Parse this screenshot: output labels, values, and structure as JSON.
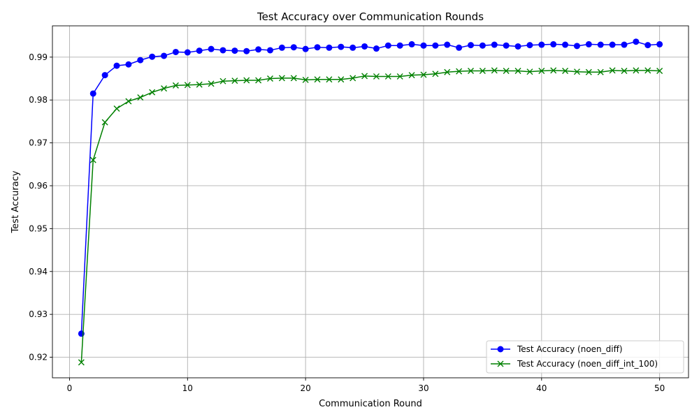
{
  "chart_data": {
    "type": "line",
    "title": "Test Accuracy over Communication Rounds",
    "xlabel": "Communication Round",
    "ylabel": "Test Accuracy",
    "xlim": [
      -1.45,
      52.45
    ],
    "ylim": [
      0.9152,
      0.9973
    ],
    "xticks": [
      0,
      10,
      20,
      30,
      40,
      50
    ],
    "yticks": [
      0.92,
      0.93,
      0.94,
      0.95,
      0.96,
      0.97,
      0.98,
      0.99
    ],
    "grid": true,
    "legend_position": "lower-right",
    "x": [
      1,
      2,
      3,
      4,
      5,
      6,
      7,
      8,
      9,
      10,
      11,
      12,
      13,
      14,
      15,
      16,
      17,
      18,
      19,
      20,
      21,
      22,
      23,
      24,
      25,
      26,
      27,
      28,
      29,
      30,
      31,
      32,
      33,
      34,
      35,
      36,
      37,
      38,
      39,
      40,
      41,
      42,
      43,
      44,
      45,
      46,
      47,
      48,
      49,
      50
    ],
    "series": [
      {
        "name": "Test Accuracy (noen_diff)",
        "color": "#0000ff",
        "marker": "circle",
        "values": [
          0.9255,
          0.9815,
          0.9858,
          0.988,
          0.9883,
          0.9893,
          0.9901,
          0.9903,
          0.9912,
          0.9911,
          0.9915,
          0.9919,
          0.9916,
          0.9915,
          0.9914,
          0.9918,
          0.9916,
          0.9922,
          0.9923,
          0.9919,
          0.9923,
          0.9922,
          0.9924,
          0.9922,
          0.9925,
          0.992,
          0.9927,
          0.9927,
          0.993,
          0.9927,
          0.9927,
          0.9929,
          0.9922,
          0.9928,
          0.9927,
          0.9929,
          0.9927,
          0.9925,
          0.9928,
          0.9929,
          0.993,
          0.9929,
          0.9926,
          0.993,
          0.9929,
          0.9929,
          0.9929,
          0.9936,
          0.9928,
          0.993
        ]
      },
      {
        "name": "Test Accuracy (noen_diff_int_100)",
        "color": "#008000",
        "marker": "x",
        "values": [
          0.9188,
          0.966,
          0.9748,
          0.978,
          0.9797,
          0.9806,
          0.9818,
          0.9827,
          0.9834,
          0.9835,
          0.9836,
          0.9838,
          0.9844,
          0.9845,
          0.9846,
          0.9846,
          0.985,
          0.9851,
          0.9851,
          0.9847,
          0.9848,
          0.9848,
          0.9848,
          0.9851,
          0.9856,
          0.9855,
          0.9855,
          0.9855,
          0.9858,
          0.9859,
          0.9861,
          0.9865,
          0.9867,
          0.9868,
          0.9868,
          0.9869,
          0.9868,
          0.9868,
          0.9866,
          0.9868,
          0.9869,
          0.9868,
          0.9866,
          0.9865,
          0.9865,
          0.9869,
          0.9868,
          0.9869,
          0.9869,
          0.9868
        ]
      }
    ]
  }
}
